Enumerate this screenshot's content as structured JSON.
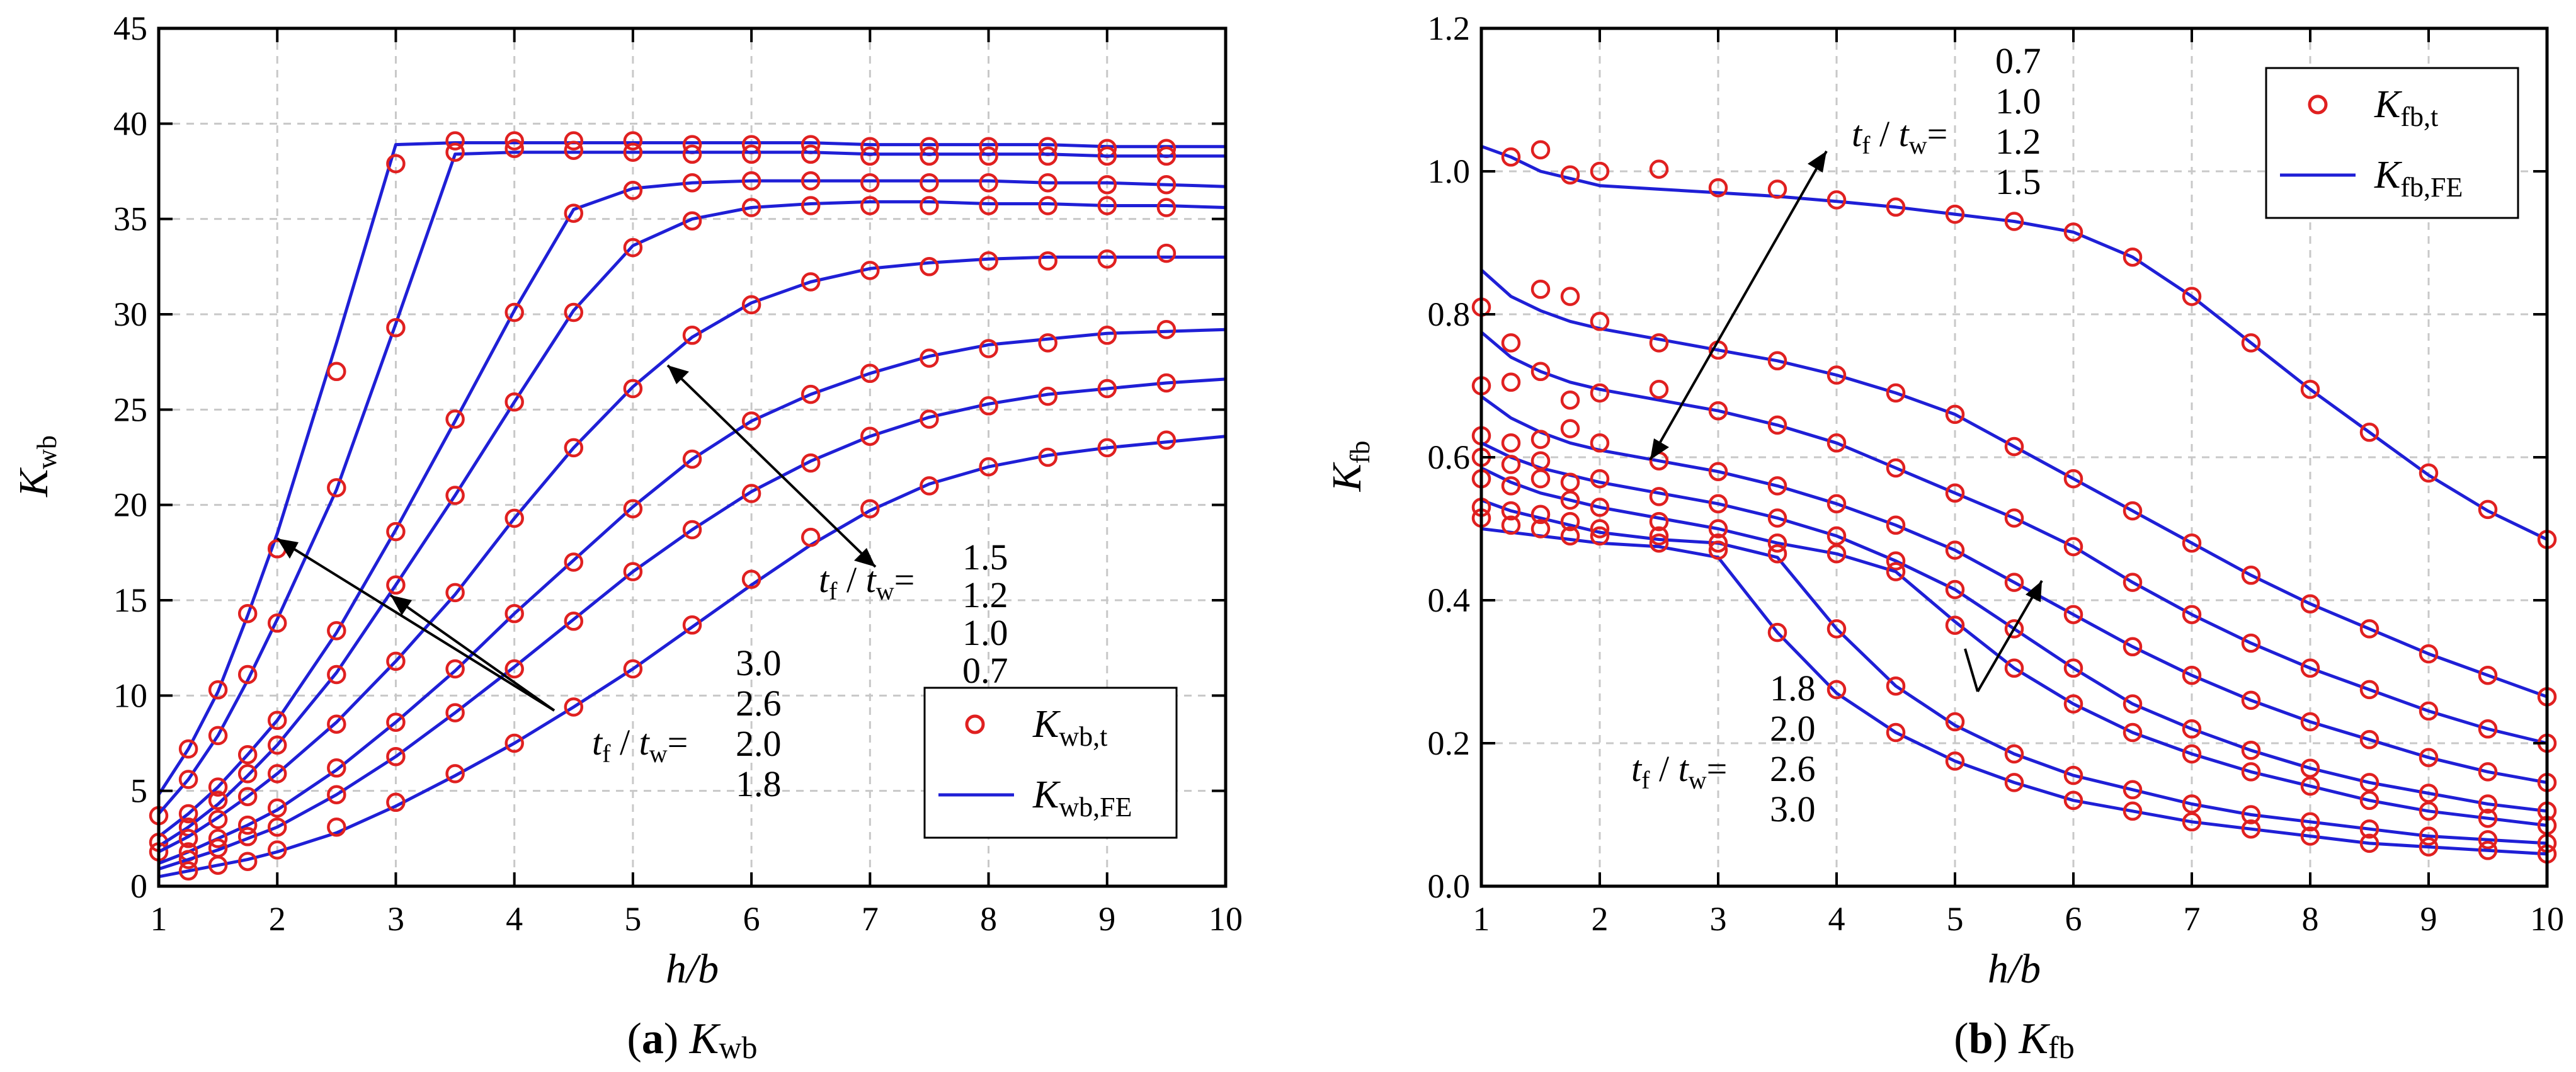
{
  "chart_data": [
    {
      "type": "line",
      "caption_letter": "a",
      "caption_text": "Kwb",
      "xlabel": "h/b",
      "ylabel": "Kwb",
      "xlim": [
        1,
        10
      ],
      "ylim": [
        0,
        45
      ],
      "xticks": [
        1,
        2,
        3,
        4,
        5,
        6,
        7,
        8,
        9,
        10
      ],
      "yticks": [
        0,
        5,
        10,
        15,
        20,
        25,
        30,
        35,
        40,
        45
      ],
      "grid": true,
      "legend": {
        "position": "bottom-right",
        "entries": [
          "Kwb,t",
          "Kwb,FE"
        ]
      },
      "annotations": [
        {
          "label": "tf / tw=",
          "values": [
            "1.5",
            "1.2",
            "1.0",
            "0.7"
          ]
        },
        {
          "label": "tf / tw=",
          "values": [
            "3.0",
            "2.6",
            "2.0",
            "1.8"
          ]
        }
      ],
      "x": [
        1,
        1.25,
        1.5,
        1.75,
        2,
        2.5,
        3,
        3.5,
        4,
        4.5,
        5,
        5.5,
        6,
        6.5,
        7,
        7.5,
        8,
        8.5,
        9,
        9.5,
        10
      ],
      "series": [
        {
          "name": "3.0 FE",
          "kind": "line",
          "values": [
            4.8,
            7.2,
            10.2,
            14.2,
            18.5,
            28.5,
            38.9,
            39.0,
            39.0,
            39.0,
            39.0,
            39.0,
            39.0,
            39.0,
            38.9,
            38.9,
            38.9,
            38.9,
            38.8,
            38.8,
            38.8
          ]
        },
        {
          "name": "3.0 test",
          "kind": "scatter",
          "values": [
            3.7,
            7.2,
            10.3,
            14.3,
            17.7,
            27.0,
            37.9,
            39.1,
            39.1,
            39.1,
            39.1,
            38.9,
            38.9,
            38.9,
            38.8,
            38.8,
            38.8,
            38.8,
            38.7,
            38.7,
            null
          ]
        },
        {
          "name": "2.6 FE",
          "kind": "line",
          "values": [
            3.8,
            5.6,
            7.9,
            10.8,
            14.0,
            20.8,
            29.5,
            38.4,
            38.5,
            38.5,
            38.5,
            38.5,
            38.5,
            38.5,
            38.4,
            38.4,
            38.4,
            38.4,
            38.3,
            38.3,
            38.3
          ]
        },
        {
          "name": "2.6 test",
          "kind": "scatter",
          "values": [
            null,
            5.6,
            7.9,
            11.1,
            13.8,
            20.9,
            29.3,
            38.5,
            38.7,
            38.6,
            38.5,
            38.4,
            38.4,
            38.4,
            38.3,
            38.3,
            38.3,
            38.3,
            38.3,
            38.3,
            null
          ]
        },
        {
          "name": "2.0 FE",
          "kind": "line",
          "values": [
            2.6,
            3.8,
            5.2,
            6.9,
            8.7,
            13.3,
            18.7,
            24.4,
            30.2,
            35.5,
            36.6,
            36.9,
            37.0,
            37.0,
            37.0,
            37.0,
            37.0,
            36.9,
            36.9,
            36.8,
            36.7
          ]
        },
        {
          "name": "2.0 test",
          "kind": "scatter",
          "values": [
            2.3,
            3.8,
            5.2,
            6.9,
            8.7,
            13.4,
            18.6,
            24.5,
            30.1,
            35.3,
            36.5,
            36.9,
            37.0,
            37.0,
            36.9,
            36.9,
            36.9,
            36.9,
            36.8,
            36.8,
            null
          ]
        },
        {
          "name": "1.8 FE",
          "kind": "line",
          "values": [
            2.1,
            3.1,
            4.3,
            5.8,
            7.4,
            11.2,
            15.8,
            20.5,
            25.4,
            30.2,
            33.6,
            35.0,
            35.6,
            35.8,
            35.9,
            35.9,
            35.8,
            35.8,
            35.7,
            35.7,
            35.6
          ]
        },
        {
          "name": "1.8 test",
          "kind": "scatter",
          "values": [
            1.8,
            3.1,
            4.5,
            5.9,
            7.4,
            11.1,
            15.8,
            20.5,
            25.4,
            30.1,
            33.5,
            34.9,
            35.6,
            35.7,
            35.7,
            35.7,
            35.7,
            35.7,
            35.7,
            35.6,
            null
          ]
        },
        {
          "name": "1.5 FE",
          "kind": "line",
          "values": [
            1.8,
            2.6,
            3.6,
            4.7,
            5.9,
            8.6,
            11.8,
            15.3,
            19.3,
            23.0,
            26.2,
            28.8,
            30.6,
            31.7,
            32.4,
            32.7,
            32.9,
            33.0,
            33.0,
            33.0,
            33.0
          ]
        },
        {
          "name": "1.5 test",
          "kind": "scatter",
          "values": [
            null,
            2.5,
            3.5,
            4.7,
            5.9,
            8.5,
            11.8,
            15.4,
            19.3,
            23.0,
            26.1,
            28.9,
            30.5,
            31.7,
            32.3,
            32.5,
            32.8,
            32.8,
            32.9,
            33.2,
            null
          ]
        },
        {
          "name": "1.2 FE",
          "kind": "line",
          "values": [
            1.2,
            1.8,
            2.5,
            3.2,
            4.0,
            6.1,
            8.6,
            11.3,
            14.3,
            17.1,
            19.9,
            22.4,
            24.4,
            25.8,
            26.9,
            27.8,
            28.4,
            28.7,
            29.0,
            29.1,
            29.2
          ]
        },
        {
          "name": "1.2 test",
          "kind": "scatter",
          "values": [
            null,
            1.8,
            2.5,
            3.2,
            4.1,
            6.2,
            8.6,
            11.4,
            14.3,
            17.0,
            19.8,
            22.4,
            24.4,
            25.8,
            26.9,
            27.7,
            28.2,
            28.5,
            28.9,
            29.2,
            null
          ]
        },
        {
          "name": "1.0 FE",
          "kind": "line",
          "values": [
            0.9,
            1.4,
            1.9,
            2.5,
            3.1,
            4.8,
            6.8,
            9.1,
            11.5,
            14.0,
            16.5,
            18.7,
            20.7,
            22.3,
            23.6,
            24.6,
            25.3,
            25.8,
            26.1,
            26.4,
            26.6
          ]
        },
        {
          "name": "1.0 test",
          "kind": "scatter",
          "values": [
            null,
            1.4,
            2.0,
            2.6,
            3.1,
            4.8,
            6.8,
            9.1,
            11.4,
            13.9,
            16.5,
            18.7,
            20.6,
            22.2,
            23.6,
            24.5,
            25.2,
            25.7,
            26.1,
            26.4,
            null
          ]
        },
        {
          "name": "0.7 FE",
          "kind": "line",
          "values": [
            0.5,
            0.8,
            1.1,
            1.4,
            1.8,
            2.8,
            4.2,
            5.8,
            7.5,
            9.4,
            11.4,
            13.6,
            15.8,
            17.9,
            19.7,
            21.1,
            22.0,
            22.6,
            23.0,
            23.3,
            23.6
          ]
        },
        {
          "name": "0.7 test",
          "kind": "scatter",
          "values": [
            null,
            0.8,
            1.1,
            1.3,
            1.9,
            3.1,
            4.4,
            5.9,
            7.5,
            9.4,
            11.4,
            13.7,
            16.1,
            18.3,
            19.8,
            21.0,
            22.0,
            22.5,
            23.0,
            23.4,
            null
          ]
        }
      ]
    },
    {
      "type": "line",
      "caption_letter": "b",
      "caption_text": "Kfb",
      "xlabel": "h/b",
      "ylabel": "Kfb",
      "xlim": [
        1,
        10
      ],
      "ylim": [
        0,
        1.2
      ],
      "xticks": [
        1,
        2,
        3,
        4,
        5,
        6,
        7,
        8,
        9,
        10
      ],
      "yticks": [
        "0.0",
        "0.2",
        "0.4",
        "0.6",
        "0.8",
        "1.0",
        "1.2"
      ],
      "grid": true,
      "legend": {
        "position": "top-right",
        "entries": [
          "Kfb,t",
          "Kfb,FE"
        ]
      },
      "annotations": [
        {
          "label": "tf / tw=",
          "values": [
            "0.7",
            "1.0",
            "1.2",
            "1.5"
          ]
        },
        {
          "label": "tf / tw=",
          "values": [
            "1.8",
            "2.0",
            "2.6",
            "3.0"
          ]
        }
      ],
      "x": [
        1,
        1.25,
        1.5,
        1.75,
        2,
        2.5,
        3,
        3.5,
        4,
        4.5,
        5,
        5.5,
        6,
        6.5,
        7,
        7.5,
        8,
        8.5,
        9,
        9.5,
        10
      ],
      "series": [
        {
          "name": "0.7 FE",
          "kind": "line",
          "values": [
            1.035,
            1.02,
            1.0,
            0.99,
            0.98,
            0.975,
            0.97,
            0.965,
            0.958,
            0.95,
            0.94,
            0.93,
            0.915,
            0.88,
            0.825,
            0.76,
            0.695,
            0.635,
            0.575,
            0.525,
            0.485
          ]
        },
        {
          "name": "0.7 test",
          "kind": "scatter",
          "values": [
            null,
            1.02,
            1.03,
            0.995,
            1.0,
            1.003,
            0.977,
            0.975,
            0.96,
            0.95,
            0.94,
            0.93,
            0.915,
            0.88,
            0.825,
            0.76,
            0.695,
            0.635,
            0.578,
            0.527,
            0.485
          ]
        },
        {
          "name": "1.0 FE",
          "kind": "line",
          "values": [
            0.862,
            0.825,
            0.805,
            0.79,
            0.78,
            0.765,
            0.75,
            0.735,
            0.715,
            0.69,
            0.66,
            0.615,
            0.57,
            0.525,
            0.48,
            0.435,
            0.395,
            0.36,
            0.325,
            0.295,
            0.265
          ]
        },
        {
          "name": "1.0 test",
          "kind": "scatter",
          "values": [
            0.81,
            0.76,
            0.835,
            0.825,
            0.79,
            0.76,
            0.75,
            0.735,
            0.715,
            0.69,
            0.66,
            0.615,
            0.57,
            0.525,
            0.48,
            0.435,
            0.395,
            0.36,
            0.325,
            0.295,
            0.265
          ]
        },
        {
          "name": "1.2 FE",
          "kind": "line",
          "values": [
            0.775,
            0.74,
            0.72,
            0.705,
            0.695,
            0.68,
            0.665,
            0.645,
            0.62,
            0.585,
            0.55,
            0.515,
            0.475,
            0.425,
            0.38,
            0.34,
            0.305,
            0.275,
            0.245,
            0.22,
            0.2
          ]
        },
        {
          "name": "1.2 test",
          "kind": "scatter",
          "values": [
            0.7,
            0.705,
            0.72,
            0.68,
            0.69,
            0.695,
            0.665,
            0.645,
            0.62,
            0.585,
            0.55,
            0.515,
            0.475,
            0.425,
            0.38,
            0.34,
            0.305,
            0.275,
            0.245,
            0.22,
            0.2
          ]
        },
        {
          "name": "1.5 FE",
          "kind": "line",
          "values": [
            0.685,
            0.655,
            0.635,
            0.62,
            0.61,
            0.595,
            0.58,
            0.56,
            0.535,
            0.505,
            0.47,
            0.425,
            0.38,
            0.335,
            0.295,
            0.26,
            0.23,
            0.205,
            0.18,
            0.16,
            0.145
          ]
        },
        {
          "name": "1.5 test",
          "kind": "scatter",
          "values": [
            0.63,
            0.62,
            0.625,
            0.64,
            0.62,
            0.595,
            0.58,
            0.56,
            0.535,
            0.505,
            0.47,
            0.425,
            0.38,
            0.335,
            0.295,
            0.26,
            0.23,
            0.205,
            0.18,
            0.16,
            0.145
          ]
        },
        {
          "name": "1.8 FE",
          "kind": "line",
          "values": [
            0.62,
            0.6,
            0.585,
            0.575,
            0.565,
            0.55,
            0.535,
            0.515,
            0.49,
            0.455,
            0.415,
            0.36,
            0.305,
            0.255,
            0.22,
            0.19,
            0.165,
            0.145,
            0.13,
            0.115,
            0.105
          ]
        },
        {
          "name": "1.8 test",
          "kind": "scatter",
          "values": [
            0.6,
            0.59,
            0.595,
            0.565,
            0.57,
            0.545,
            0.535,
            0.515,
            0.49,
            0.455,
            0.415,
            0.36,
            0.305,
            0.255,
            0.22,
            0.19,
            0.165,
            0.145,
            0.13,
            0.115,
            0.105
          ]
        },
        {
          "name": "2.0 FE",
          "kind": "line",
          "values": [
            0.585,
            0.565,
            0.55,
            0.54,
            0.53,
            0.515,
            0.5,
            0.48,
            0.465,
            0.44,
            0.37,
            0.305,
            0.255,
            0.215,
            0.185,
            0.16,
            0.14,
            0.12,
            0.105,
            0.095,
            0.085
          ]
        },
        {
          "name": "2.0 test",
          "kind": "scatter",
          "values": [
            0.57,
            0.56,
            0.57,
            0.54,
            0.53,
            0.51,
            0.5,
            0.48,
            0.465,
            0.44,
            0.365,
            0.305,
            0.255,
            0.215,
            0.185,
            0.16,
            0.14,
            0.12,
            0.105,
            0.095,
            0.085
          ]
        },
        {
          "name": "2.6 FE",
          "kind": "line",
          "values": [
            0.54,
            0.525,
            0.515,
            0.505,
            0.495,
            0.485,
            0.48,
            0.46,
            0.36,
            0.28,
            0.225,
            0.185,
            0.155,
            0.135,
            0.115,
            0.1,
            0.09,
            0.08,
            0.07,
            0.065,
            0.06
          ]
        },
        {
          "name": "2.6 test",
          "kind": "scatter",
          "values": [
            0.53,
            0.525,
            0.52,
            0.51,
            0.5,
            0.49,
            0.48,
            0.465,
            0.36,
            0.28,
            0.23,
            0.185,
            0.155,
            0.135,
            0.115,
            0.1,
            0.09,
            0.08,
            0.07,
            0.065,
            0.06
          ]
        },
        {
          "name": "3.0 FE",
          "kind": "line",
          "values": [
            0.5,
            0.495,
            0.49,
            0.485,
            0.48,
            0.475,
            0.46,
            0.355,
            0.27,
            0.215,
            0.175,
            0.145,
            0.12,
            0.105,
            0.09,
            0.08,
            0.07,
            0.06,
            0.055,
            0.05,
            0.045
          ]
        },
        {
          "name": "3.0 test",
          "kind": "scatter",
          "values": [
            0.515,
            0.505,
            0.5,
            0.49,
            0.49,
            0.48,
            0.47,
            0.355,
            0.275,
            0.215,
            0.175,
            0.145,
            0.12,
            0.105,
            0.09,
            0.08,
            0.07,
            0.06,
            0.055,
            0.05,
            0.045
          ]
        }
      ]
    }
  ],
  "colors": {
    "line": "#1f1fd6",
    "marker": "#e02020",
    "grid": "#c8c8c8",
    "axis": "#000000"
  }
}
